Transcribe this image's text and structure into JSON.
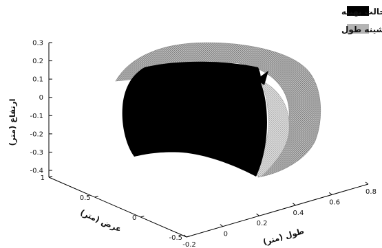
{
  "chart_data": {
    "type": "surface3d",
    "legend": {
      "placement": "top-right",
      "entries": [
        {
          "label": "حالت بهینه",
          "color": "#000000"
        },
        {
          "label": "حالت بیشینه طول",
          "color": "#b4b4b4"
        }
      ]
    },
    "axes": {
      "x": {
        "label": "طول (متر)",
        "range": [
          -0.2,
          0.8
        ],
        "ticks": [
          "-0.2",
          "0",
          "0.2",
          "0.4",
          "0.6",
          "0.8"
        ]
      },
      "y": {
        "label": "عرض (متر)",
        "range": [
          -0.5,
          1
        ],
        "ticks": [
          "-0.5",
          "0",
          "0.5",
          "1"
        ]
      },
      "z": {
        "label": "ارتفاع (متر)",
        "range": [
          -0.4,
          0.3
        ],
        "ticks": [
          "0.3",
          "0.2",
          "0.1",
          "0",
          "-0.1",
          "-0.2",
          "-0.3",
          "-0.4"
        ]
      }
    },
    "series": [
      {
        "name": "حالت بهینه",
        "color": "#000000"
      },
      {
        "name": "حالت بیشینه طول",
        "color": "#b4b4b4"
      }
    ]
  }
}
